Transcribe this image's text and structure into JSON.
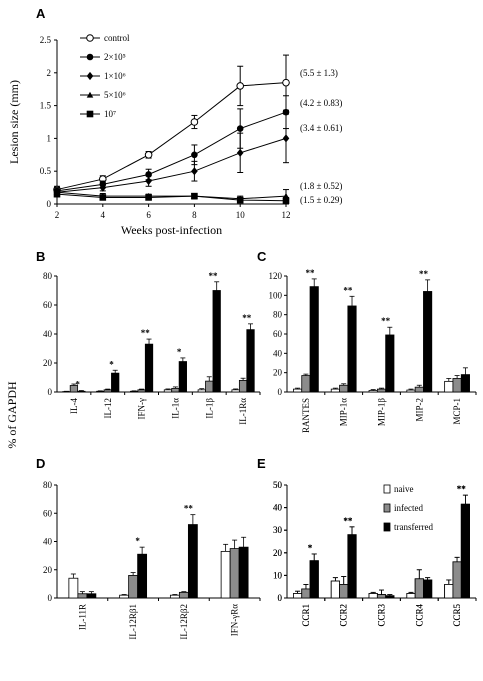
{
  "colors": {
    "naive": "#ffffff",
    "infected": "#8c8c8c",
    "transferred": "#000000",
    "axis": "#000000"
  },
  "chart_data": [
    {
      "id": "A",
      "panel_label": "A",
      "type": "line",
      "xlabel": "Weeks post-infection",
      "ylabel": "Lesion size (mm)",
      "x": [
        2,
        4,
        6,
        8,
        10,
        12
      ],
      "xlim": [
        2,
        12
      ],
      "ylim": [
        0,
        2.5
      ],
      "yticks": [
        "0",
        "0.5",
        "1",
        "1.5",
        "2",
        "2.5"
      ],
      "xticks": [
        "2",
        "4",
        "6",
        "8",
        "10",
        "12"
      ],
      "legend_position": "top-left",
      "series": [
        {
          "name": "control",
          "marker": "open-circle",
          "values": [
            0.22,
            0.38,
            0.75,
            1.25,
            1.8,
            1.85
          ],
          "errors": [
            0.05,
            0.05,
            0.05,
            0.1,
            0.3,
            0.42
          ],
          "end_label": "(5.5 ± 1.3)"
        },
        {
          "name": "2×10⁵",
          "marker": "filled-circle",
          "values": [
            0.2,
            0.3,
            0.45,
            0.75,
            1.15,
            1.4
          ],
          "errors": [
            0.05,
            0.05,
            0.08,
            0.15,
            0.3,
            0.25
          ],
          "end_label": "(4.2 ± 0.83)"
        },
        {
          "name": "1×10⁶",
          "marker": "diamond",
          "values": [
            0.18,
            0.25,
            0.35,
            0.5,
            0.78,
            1.0
          ],
          "errors": [
            0.05,
            0.05,
            0.08,
            0.15,
            0.3,
            0.37
          ],
          "end_label": "(3.4 ± 0.61)"
        },
        {
          "name": "5×10⁶",
          "marker": "triangle",
          "values": [
            0.18,
            0.12,
            0.12,
            0.12,
            0.08,
            0.12
          ],
          "errors": [
            0.05,
            0.04,
            0.03,
            0.04,
            0.04,
            0.1
          ],
          "end_label": "(1.8 ± 0.52)"
        },
        {
          "name": "10⁷",
          "marker": "square",
          "values": [
            0.15,
            0.1,
            0.1,
            0.12,
            0.06,
            0.05
          ],
          "errors": [
            0.04,
            0.03,
            0.03,
            0.04,
            0.04,
            0.05
          ],
          "end_label": "(1.5 ± 0.29)"
        }
      ]
    },
    {
      "id": "B",
      "panel_label": "B",
      "type": "bar",
      "ylabel": "% of GAPDH",
      "ylim": [
        0,
        80
      ],
      "yticks": [
        "0",
        "20",
        "40",
        "60",
        "80"
      ],
      "categories": [
        "IL-4",
        "IL-12",
        "IFN-γ",
        "IL-1α",
        "IL-1β",
        "IL-1Rα"
      ],
      "significance": [
        "*",
        "*",
        "**",
        "*",
        "**",
        "**"
      ],
      "series": [
        {
          "name": "naive",
          "values": [
            0.3,
            0.5,
            0.5,
            1.5,
            1.5,
            1.5
          ],
          "errors": [
            0.2,
            0.3,
            0.3,
            0.6,
            0.8,
            0.6
          ]
        },
        {
          "name": "infected",
          "values": [
            4.5,
            1.5,
            1.5,
            2.5,
            7.5,
            8.0
          ],
          "errors": [
            1.0,
            0.5,
            0.5,
            1.0,
            3.0,
            1.5
          ]
        },
        {
          "name": "transferred",
          "values": [
            0.5,
            13,
            33,
            21,
            70,
            43
          ],
          "errors": [
            0.5,
            2,
            3.5,
            2.5,
            6,
            4
          ]
        }
      ]
    },
    {
      "id": "C",
      "panel_label": "C",
      "type": "bar",
      "ylim": [
        0,
        120
      ],
      "yticks": [
        "0",
        "20",
        "40",
        "60",
        "80",
        "100",
        "120"
      ],
      "categories": [
        "RANTES",
        "MIP-1α",
        "MIP-1β",
        "MIP-2",
        "MCP-1"
      ],
      "significance": [
        "**",
        "**",
        "**",
        "**",
        ""
      ],
      "series": [
        {
          "name": "naive",
          "values": [
            3,
            3,
            1.5,
            2,
            11
          ],
          "errors": [
            1,
            1,
            1,
            1,
            3
          ]
        },
        {
          "name": "infected",
          "values": [
            17,
            7,
            3,
            5,
            14
          ],
          "errors": [
            1.5,
            1.5,
            1,
            2,
            3
          ]
        },
        {
          "name": "transferred",
          "values": [
            109,
            89,
            59,
            104,
            18
          ],
          "errors": [
            8,
            10,
            8,
            12,
            7
          ]
        }
      ]
    },
    {
      "id": "D",
      "panel_label": "D",
      "type": "bar",
      "ylim": [
        0,
        80
      ],
      "yticks": [
        "0",
        "20",
        "40",
        "60",
        "80"
      ],
      "categories": [
        "IL-11R",
        "IL-12Rβ1",
        "IL-12Rβ2",
        "IFN-γRα"
      ],
      "significance": [
        "",
        "*",
        "**",
        ""
      ],
      "series": [
        {
          "name": "naive",
          "values": [
            14,
            2,
            2,
            33
          ],
          "errors": [
            3,
            0.5,
            0.5,
            5
          ]
        },
        {
          "name": "infected",
          "values": [
            3,
            16,
            4,
            35
          ],
          "errors": [
            1.5,
            2,
            0.5,
            6
          ]
        },
        {
          "name": "transferred",
          "values": [
            3,
            31,
            52,
            36
          ],
          "errors": [
            1.5,
            5,
            7,
            7
          ]
        }
      ]
    },
    {
      "id": "E",
      "panel_label": "E",
      "type": "bar",
      "ylim": [
        0,
        50
      ],
      "yticks": [
        "0",
        "10",
        "20",
        "30",
        "40",
        "50"
      ],
      "categories": [
        "CCR1",
        "CCR2",
        "CCR3",
        "CCR4",
        "CCR5"
      ],
      "significance": [
        "*",
        "**",
        "",
        "",
        "**"
      ],
      "legend_position": "top-right",
      "series": [
        {
          "name": "naive",
          "values": [
            2,
            7.5,
            2,
            2,
            6
          ],
          "errors": [
            1,
            1.5,
            0.5,
            0.5,
            2
          ]
        },
        {
          "name": "infected",
          "values": [
            4,
            6,
            1.5,
            8.5,
            16
          ],
          "errors": [
            2,
            3.5,
            2,
            4,
            2
          ]
        },
        {
          "name": "transferred",
          "values": [
            16.5,
            28,
            1,
            8,
            41.5
          ],
          "errors": [
            3,
            3.5,
            0.5,
            1,
            4
          ]
        }
      ]
    }
  ]
}
